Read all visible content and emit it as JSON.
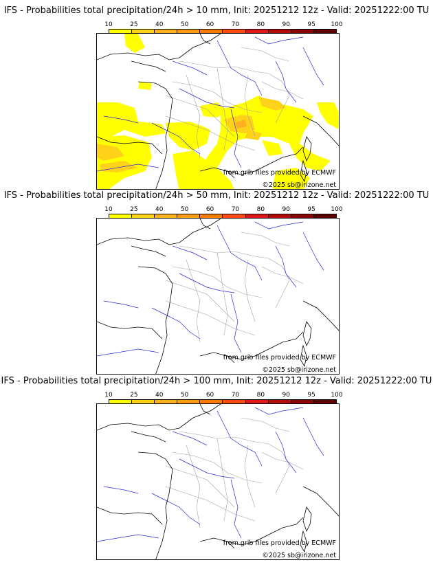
{
  "colorbar": {
    "ticks": [
      "10",
      "25",
      "40",
      "50",
      "60",
      "70",
      "80",
      "90",
      "95",
      "100"
    ],
    "colors": [
      "#ffff00",
      "#ffd21a",
      "#ffb01e",
      "#ff9a14",
      "#ff7a00",
      "#ff4b12",
      "#e01818",
      "#b30a0a",
      "#8a0505",
      "#5c0000"
    ]
  },
  "panels": [
    {
      "title": "IFS - Probabilities total precipitation/24h > 10 mm, Init: 20251212 12z - Valid: 20251222:00 TU",
      "credit_source": "from grib files provided by ECMWF",
      "credit_copyright": "©2025 sb@irizone.net"
    },
    {
      "title": "IFS - Probabilities total precipitation/24h > 50 mm, Init: 20251212 12z - Valid: 20251222:00 TU",
      "credit_source": "from grib files provided by ECMWF",
      "credit_copyright": "©2025 sb@irizone.net"
    },
    {
      "title": "IFS - Probabilities total precipitation/24h > 100 mm, Init: 20251212 12z - Valid: 20251222:00 TU",
      "credit_source": "from grib files provided by ECMWF",
      "credit_copyright": "©2025 sb@irizone.net"
    }
  ],
  "line_colors": {
    "coast": "#000000",
    "rivers": "#2a2ad8",
    "borders": "#a0a0a0"
  }
}
